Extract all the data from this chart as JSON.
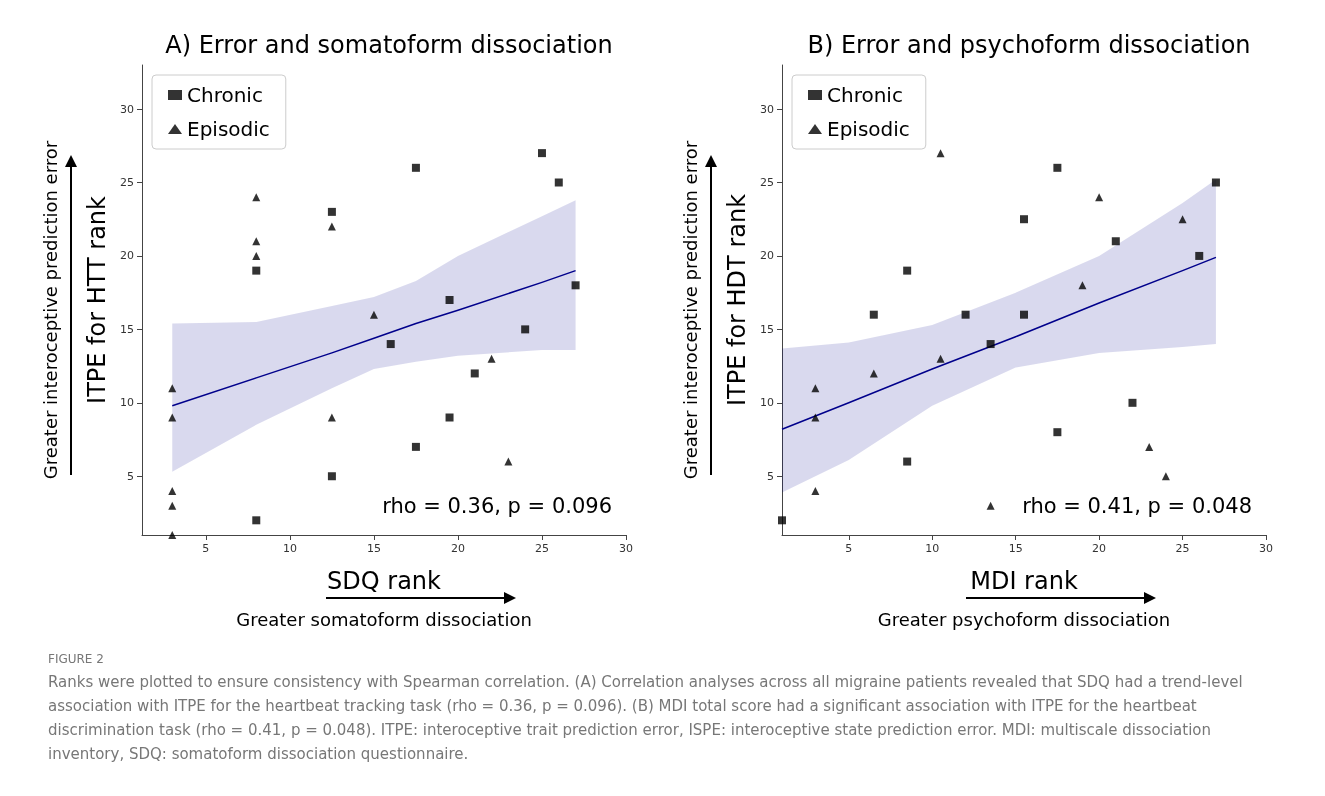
{
  "chart_data": [
    {
      "type": "scatter",
      "title": "A) Error and somatoform dissociation",
      "xlabel": "SDQ rank",
      "ylabel": "ITPE for HTT rank",
      "annotations": [
        "rho = 0.36, p = 0.096",
        "Greater interoceptive prediction error",
        "Greater somatoform dissociation",
        "FIGURE 2",
        "Ranks were plotted to ensure consistency with Spearman correlation. (A) Correlation analyses across all migraine patients revealed that SDQ had a trend-level association with ITPE for the heartbeat tracking task (rho = 0.36, p = 0.096). (B) MDI total score had a significant association with ITPE for the heartbeat discrimination task (rho = 0.41, p = 0.048). ITPE: interoceptive trait prediction error, ISPE: interoceptive state prediction error. MDI: multiscale dissociation inventory, SDQ: somatoform dissociation questionnaire."
      ],
      "xlim": [
        1.2,
        30
      ],
      "xticks": [
        5,
        10,
        15,
        20,
        25,
        30
      ],
      "ylim": [
        1,
        33
      ],
      "yticks": [
        5,
        10,
        15,
        20,
        25,
        30
      ],
      "grid": false,
      "legend": "top left",
      "series": [
        {
          "name": "Chronic",
          "color": "#000000",
          "marker": "square",
          "x": [
            17.5,
            25,
            26,
            12.5,
            8,
            19.5,
            27,
            24,
            16,
            21,
            19.5,
            17.5,
            12.5,
            8
          ],
          "values": [
            26,
            27,
            25,
            23,
            19,
            17,
            18,
            15,
            14,
            12,
            9,
            7,
            5,
            2
          ]
        },
        {
          "name": "Episodic",
          "color": "#000000",
          "marker": "triangle",
          "x": [
            8,
            12.5,
            8,
            8,
            15,
            22,
            3,
            3,
            12.5,
            23,
            3,
            3,
            3
          ],
          "values": [
            24,
            22,
            21,
            20,
            16,
            13,
            11,
            9,
            9,
            6,
            4,
            3,
            1
          ]
        },
        {
          "type": "line",
          "color": "#00008b",
          "marker": "none",
          "x": [
            3,
            8,
            12.5,
            15,
            17.5,
            20,
            25,
            27
          ],
          "values": [
            9.8,
            11.7,
            13.4,
            14.4,
            15.4,
            16.3,
            18.2,
            19.0
          ],
          "lower": [
            5.3,
            8.5,
            11.0,
            12.3,
            12.8,
            13.2,
            13.6,
            13.6
          ],
          "upper": [
            15.4,
            15.5,
            16.6,
            17.2,
            18.3,
            20.0,
            22.7,
            23.8
          ]
        }
      ]
    },
    {
      "type": "scatter",
      "title": "B) Error and psychoform dissociation",
      "xlabel": "MDI rank",
      "ylabel": "ITPE for HDT rank",
      "annotations": [
        "rho = 0.41, p = 0.048",
        "Greater interoceptive prediction error",
        "Greater psychoform dissociation"
      ],
      "xlim": [
        1,
        30
      ],
      "xticks": [
        5,
        10,
        15,
        20,
        25,
        30
      ],
      "ylim": [
        1,
        33
      ],
      "yticks": [
        5,
        10,
        15,
        20,
        25,
        30
      ],
      "grid": false,
      "legend": "top left",
      "series": [
        {
          "name": "Chronic",
          "color": "#000000",
          "marker": "square",
          "x": [
            1,
            17.5,
            27,
            15.5,
            21,
            26,
            8.5,
            6.5,
            12,
            15.5,
            13.5,
            22,
            17.5,
            8.5
          ],
          "values": [
            2,
            26,
            25,
            22.5,
            21,
            20,
            19,
            16,
            16,
            16,
            14,
            10,
            8,
            6
          ]
        },
        {
          "name": "Episodic",
          "color": "#000000",
          "marker": "triangle",
          "x": [
            10.5,
            20,
            25,
            19,
            10.5,
            6.5,
            3,
            3,
            23,
            24,
            3,
            13.5
          ],
          "values": [
            27,
            24,
            22.5,
            18,
            13,
            12,
            11,
            9,
            7,
            5,
            4,
            3
          ]
        },
        {
          "type": "line",
          "color": "#00008b",
          "marker": "none",
          "x": [
            1,
            5,
            10,
            15,
            20,
            25,
            27
          ],
          "values": [
            8.2,
            10.0,
            12.3,
            14.5,
            16.8,
            19.0,
            19.9
          ],
          "lower": [
            3.9,
            6.1,
            9.8,
            12.4,
            13.4,
            13.8,
            14.0
          ],
          "upper": [
            13.7,
            14.1,
            15.3,
            17.5,
            20.0,
            23.6,
            25.2
          ]
        }
      ]
    }
  ]
}
